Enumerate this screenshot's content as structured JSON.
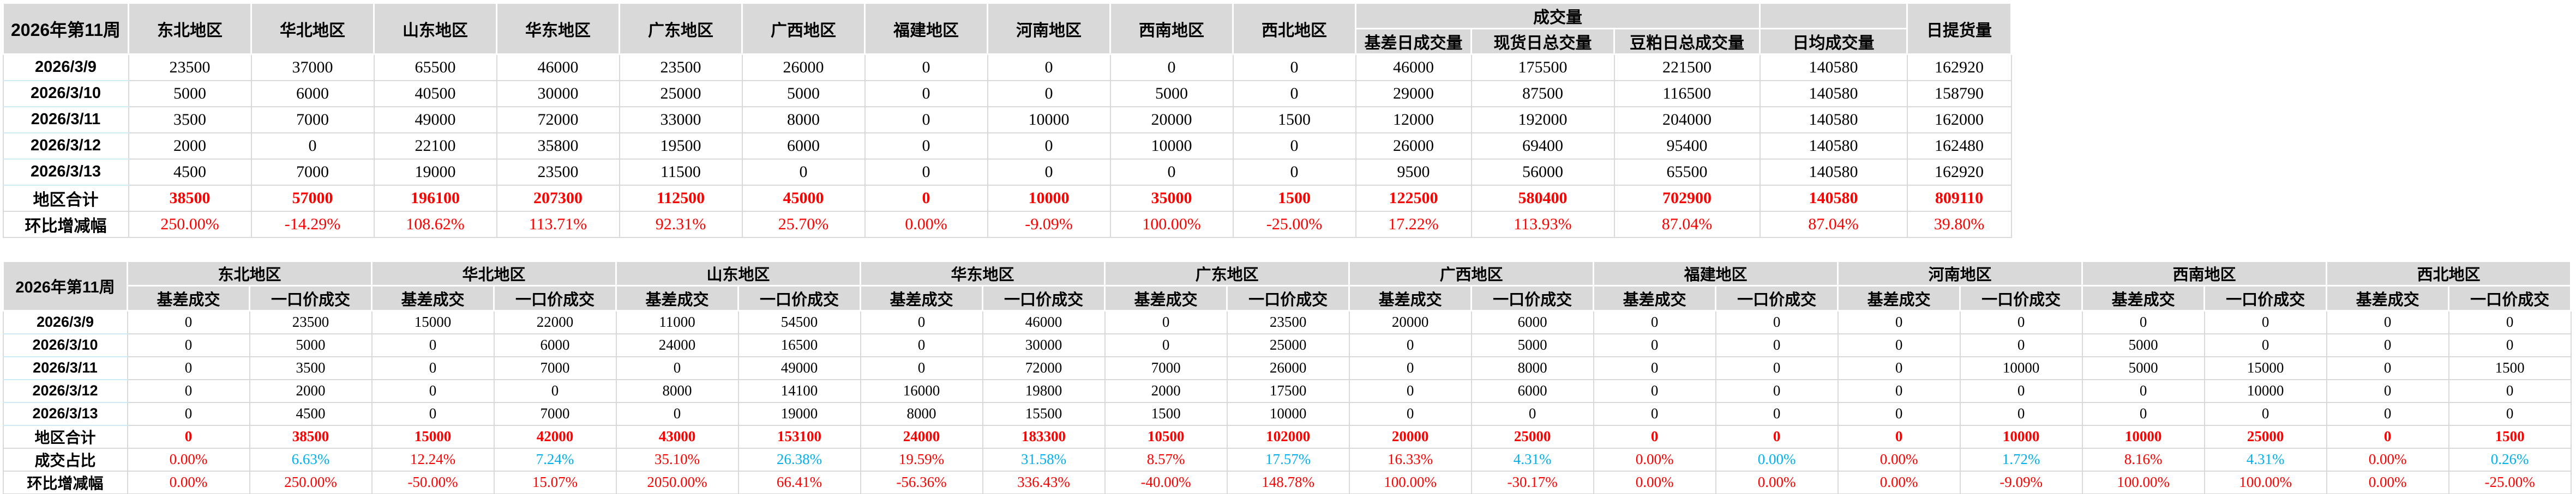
{
  "colors": {
    "accent_red": "#FF0000",
    "accent_blue": "#00B0F0",
    "header_bg": "#D9D9D9",
    "grid": "#D9D9D9"
  },
  "table1": {
    "title_cell": "2026年第11周",
    "region_headers": [
      "东北地区",
      "华北地区",
      "山东地区",
      "华东地区",
      "广东地区",
      "广西地区",
      "福建地区",
      "河南地区",
      "西南地区",
      "西北地区"
    ],
    "volume_group_header": "成交量",
    "volume_headers": [
      "基差日成交量",
      "现货日总交量",
      "豆粕日总成交量",
      "日均成交量"
    ],
    "pickup_header": "日提货量",
    "rows": [
      {
        "label": "2026/3/9",
        "values": [
          23500,
          37000,
          65500,
          46000,
          23500,
          26000,
          0,
          0,
          0,
          0,
          46000,
          175500,
          221500,
          140580,
          162920
        ]
      },
      {
        "label": "2026/3/10",
        "values": [
          5000,
          6000,
          40500,
          30000,
          25000,
          5000,
          0,
          0,
          5000,
          0,
          29000,
          87500,
          116500,
          140580,
          158790
        ]
      },
      {
        "label": "2026/3/11",
        "values": [
          3500,
          7000,
          49000,
          72000,
          33000,
          8000,
          0,
          10000,
          20000,
          1500,
          12000,
          192000,
          204000,
          140580,
          162000
        ]
      },
      {
        "label": "2026/3/12",
        "values": [
          2000,
          0,
          22100,
          35800,
          19500,
          6000,
          0,
          0,
          10000,
          0,
          26000,
          69400,
          95400,
          140580,
          162480
        ]
      },
      {
        "label": "2026/3/13",
        "values": [
          4500,
          7000,
          19000,
          23500,
          11500,
          0,
          0,
          0,
          0,
          0,
          9500,
          56000,
          65500,
          140580,
          162920
        ]
      }
    ],
    "total_row": {
      "label": "地区合计",
      "values": [
        38500,
        57000,
        196100,
        207300,
        112500,
        45000,
        0,
        10000,
        35000,
        1500,
        122500,
        580400,
        702900,
        140580,
        809110
      ]
    },
    "wow_row": {
      "label": "环比增减幅",
      "values": [
        "250.00%",
        "-14.29%",
        "108.62%",
        "113.71%",
        "92.31%",
        "25.70%",
        "0.00%",
        "-9.09%",
        "100.00%",
        "-25.00%",
        "17.22%",
        "113.93%",
        "87.04%",
        "87.04%",
        "39.80%"
      ]
    }
  },
  "table2": {
    "title_cell": "2026年第11周",
    "region_headers": [
      "东北地区",
      "华北地区",
      "山东地区",
      "华东地区",
      "广东地区",
      "广西地区",
      "福建地区",
      "河南地区",
      "西南地区",
      "西北地区"
    ],
    "sub_headers": [
      "基差成交",
      "一口价成交"
    ],
    "rows": [
      {
        "label": "2026/3/9",
        "values": [
          0,
          23500,
          15000,
          22000,
          11000,
          54500,
          0,
          46000,
          0,
          23500,
          20000,
          6000,
          0,
          0,
          0,
          0,
          0,
          0,
          0,
          0
        ]
      },
      {
        "label": "2026/3/10",
        "values": [
          0,
          5000,
          0,
          6000,
          24000,
          16500,
          0,
          30000,
          0,
          25000,
          0,
          5000,
          0,
          0,
          0,
          0,
          5000,
          0,
          0,
          0
        ]
      },
      {
        "label": "2026/3/11",
        "values": [
          0,
          3500,
          0,
          7000,
          0,
          49000,
          0,
          72000,
          7000,
          26000,
          0,
          8000,
          0,
          0,
          0,
          10000,
          5000,
          15000,
          0,
          1500
        ]
      },
      {
        "label": "2026/3/12",
        "values": [
          0,
          2000,
          0,
          0,
          8000,
          14100,
          16000,
          19800,
          2000,
          17500,
          0,
          6000,
          0,
          0,
          0,
          0,
          0,
          10000,
          0,
          0
        ]
      },
      {
        "label": "2026/3/13",
        "values": [
          0,
          4500,
          0,
          7000,
          0,
          19000,
          8000,
          15500,
          1500,
          10000,
          0,
          0,
          0,
          0,
          0,
          0,
          0,
          0,
          0,
          0
        ]
      }
    ],
    "total_row": {
      "label": "地区合计",
      "values": [
        0,
        38500,
        15000,
        42000,
        43000,
        153100,
        24000,
        183300,
        10500,
        102000,
        20000,
        25000,
        0,
        0,
        0,
        10000,
        10000,
        25000,
        0,
        1500
      ]
    },
    "share_row": {
      "label": "成交占比",
      "values": [
        "0.00%",
        "6.63%",
        "12.24%",
        "7.24%",
        "35.10%",
        "26.38%",
        "19.59%",
        "31.58%",
        "8.57%",
        "17.57%",
        "16.33%",
        "4.31%",
        "0.00%",
        "0.00%",
        "0.00%",
        "1.72%",
        "8.16%",
        "4.31%",
        "0.00%",
        "0.26%"
      ]
    },
    "wow_row": {
      "label": "环比增减幅",
      "values": [
        "0.00%",
        "250.00%",
        "-50.00%",
        "15.07%",
        "2050.00%",
        "66.41%",
        "-56.36%",
        "336.43%",
        "-40.00%",
        "148.78%",
        "100.00%",
        "-30.17%",
        "0.00%",
        "0.00%",
        "0.00%",
        "-9.09%",
        "100.00%",
        "100.00%",
        "0.00%",
        "-25.00%"
      ]
    }
  }
}
